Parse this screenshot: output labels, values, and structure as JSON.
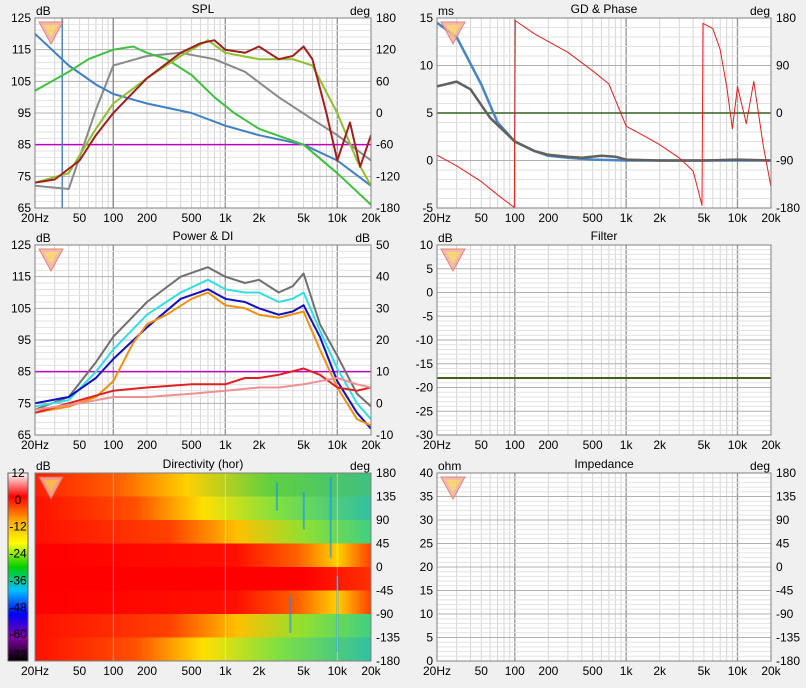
{
  "x_ticks": [
    "20Hz",
    "50",
    "100",
    "200",
    "500",
    "1k",
    "2k",
    "5k",
    "10k",
    "20k"
  ],
  "x_tick_values": [
    20,
    50,
    100,
    200,
    500,
    1000,
    2000,
    5000,
    10000,
    20000
  ],
  "directivity_colorbar": {
    "labels": [
      "12",
      "0",
      "-12",
      "-24",
      "-36",
      "-48",
      "-60",
      "-72"
    ],
    "colors": [
      "#ffffff",
      "#ff0000",
      "#ffa500",
      "#ffff00",
      "#00d000",
      "#00c0ff",
      "#0000ff",
      "#8000a0",
      "#000000"
    ]
  },
  "chart_data": [
    {
      "id": "spl",
      "type": "line",
      "title": "SPL",
      "left_unit": "dB",
      "right_unit": "deg",
      "xscale": "log",
      "xlim": [
        20,
        20000
      ],
      "ylim": [
        65,
        125
      ],
      "y_ticks": [
        "125",
        "115",
        "105",
        "95",
        "85",
        "75",
        "65"
      ],
      "y2lim": [
        -180,
        180
      ],
      "y2_ticks": [
        "180",
        "120",
        "60",
        "0",
        "-60",
        "-120",
        "-180"
      ],
      "grid": true,
      "series": [
        {
          "color": "#8a8a8a",
          "x": [
            20,
            40,
            70,
            100,
            200,
            400,
            800,
            1500,
            3000,
            6000,
            10000,
            20000
          ],
          "y": [
            72,
            71,
            96,
            110,
            113,
            114,
            112,
            108,
            100,
            93,
            88,
            80
          ]
        },
        {
          "color": "#4080c0",
          "x": [
            20,
            40,
            70,
            100,
            200,
            500,
            1000,
            2000,
            5000,
            10000,
            20000
          ],
          "y": [
            120,
            110,
            104,
            101,
            98,
            95,
            91,
            88,
            85,
            80,
            72
          ]
        },
        {
          "color": "#40c040",
          "x": [
            20,
            40,
            60,
            100,
            150,
            200,
            300,
            500,
            800,
            1200,
            2000,
            5000,
            10000,
            20000
          ],
          "y": [
            102,
            108,
            112,
            115,
            116,
            114,
            112,
            107,
            100,
            95,
            90,
            85,
            76,
            66
          ]
        },
        {
          "color": "#90c030",
          "x": [
            20,
            40,
            70,
            100,
            200,
            400,
            700,
            1000,
            2000,
            4000,
            6000,
            10000,
            15000,
            20000
          ],
          "y": [
            73,
            76,
            90,
            98,
            106,
            113,
            118,
            114,
            112,
            112,
            110,
            95,
            80,
            72
          ]
        },
        {
          "color": "#a02020",
          "x": [
            20,
            30,
            50,
            70,
            100,
            200,
            400,
            600,
            800,
            1000,
            1500,
            2000,
            3000,
            4000,
            5000,
            6000,
            8000,
            10000,
            13000,
            16000,
            20000
          ],
          "y": [
            73,
            74,
            80,
            88,
            95,
            106,
            114,
            117,
            118,
            115,
            114,
            116,
            112,
            113,
            116,
            112,
            95,
            80,
            92,
            78,
            88
          ]
        }
      ],
      "markers": {
        "hline": {
          "y": 85,
          "color": "#c000c0"
        },
        "vline_x": [
          35,
          100
        ]
      }
    },
    {
      "id": "gd_phase",
      "type": "line",
      "title": "GD & Phase",
      "left_unit": "ms",
      "right_unit": "deg",
      "xscale": "log",
      "xlim": [
        20,
        20000
      ],
      "ylim": [
        -5,
        15
      ],
      "y_ticks": [
        "15",
        "10",
        "5",
        "0",
        "-5"
      ],
      "y2lim": [
        -180,
        180
      ],
      "y2_ticks": [
        "180",
        "90",
        "0",
        "-90",
        "-180"
      ],
      "grid": true,
      "series": [
        {
          "name": "group-delay-blue",
          "color": "#4a86c0",
          "x": [
            20,
            30,
            50,
            70,
            100,
            150,
            200,
            300,
            500,
            1000,
            2000,
            5000,
            10000,
            20000
          ],
          "y": [
            14.5,
            13,
            8,
            4,
            2,
            1,
            0.5,
            0.3,
            0.1,
            0,
            0,
            0,
            0,
            0
          ]
        },
        {
          "name": "group-delay-gray",
          "color": "#606060",
          "x": [
            20,
            30,
            40,
            60,
            100,
            150,
            200,
            300,
            400,
            600,
            800,
            1000,
            2000,
            5000,
            10000,
            20000
          ],
          "y": [
            7.8,
            8.3,
            7.5,
            4.5,
            2,
            1,
            0.6,
            0.4,
            0.3,
            0.5,
            0.4,
            0.1,
            0,
            0,
            0.1,
            0
          ]
        },
        {
          "name": "phase",
          "color": "#e02020",
          "x": [
            20,
            30,
            50,
            70,
            99,
            101,
            150,
            300,
            500,
            700,
            1000,
            1500,
            2000,
            3000,
            4000,
            4800,
            4900,
            6000,
            7000,
            8000,
            9000,
            10000,
            12000,
            14000,
            17000,
            20000
          ],
          "y": [
            -80,
            -100,
            -130,
            -155,
            -179,
            175,
            150,
            115,
            80,
            55,
            -25,
            -45,
            -60,
            -85,
            -110,
            -175,
            170,
            160,
            120,
            50,
            -30,
            50,
            -20,
            60,
            -60,
            -140
          ]
        }
      ],
      "markers": {
        "hline": {
          "y": 5,
          "color": "#306020"
        }
      }
    },
    {
      "id": "power_di",
      "type": "line",
      "title": "Power & DI",
      "left_unit": "dB",
      "right_unit": "dB",
      "xscale": "log",
      "xlim": [
        20,
        20000
      ],
      "ylim": [
        65,
        125
      ],
      "y_ticks": [
        "125",
        "115",
        "105",
        "95",
        "85",
        "75",
        "65"
      ],
      "y2lim": [
        -10,
        50
      ],
      "y2_ticks": [
        "50",
        "40",
        "30",
        "20",
        "10",
        "0",
        "-10"
      ],
      "grid": true,
      "series": [
        {
          "color": "#707070",
          "x": [
            20,
            40,
            70,
            100,
            200,
            400,
            700,
            1000,
            1500,
            2000,
            3000,
            4000,
            5000,
            7000,
            10000,
            15000,
            20000
          ],
          "y": [
            73,
            77,
            88,
            96,
            107,
            115,
            118,
            115,
            113,
            114,
            110,
            112,
            116,
            100,
            90,
            78,
            74
          ]
        },
        {
          "color": "#30e0e0",
          "x": [
            20,
            40,
            70,
            100,
            200,
            400,
            700,
            1000,
            1500,
            2000,
            3000,
            4000,
            5000,
            7000,
            10000,
            15000,
            20000
          ],
          "y": [
            74,
            76,
            85,
            92,
            103,
            110,
            114,
            111,
            110,
            110,
            107,
            108,
            110,
            98,
            86,
            75,
            70
          ]
        },
        {
          "color": "#1010c0",
          "x": [
            20,
            40,
            70,
            100,
            200,
            400,
            700,
            1000,
            1500,
            2000,
            3000,
            4000,
            5000,
            7000,
            10000,
            15000,
            20000
          ],
          "y": [
            75,
            77,
            83,
            89,
            99,
            108,
            111,
            108,
            107,
            105,
            103,
            104,
            106,
            96,
            82,
            72,
            67
          ]
        },
        {
          "color": "#f09010",
          "x": [
            20,
            40,
            70,
            100,
            150,
            200,
            300,
            500,
            700,
            1000,
            1500,
            2000,
            3000,
            5000,
            7000,
            10000,
            15000,
            20000
          ],
          "y": [
            72,
            74,
            77,
            82,
            94,
            100,
            103,
            108,
            110,
            106,
            105,
            103,
            102,
            104,
            92,
            80,
            70,
            68
          ]
        },
        {
          "color": "#e02020",
          "x": [
            20,
            50,
            100,
            200,
            500,
            1000,
            1500,
            2000,
            3000,
            5000,
            7000,
            10000,
            15000,
            20000
          ],
          "y": [
            72,
            76,
            79,
            80,
            81,
            81,
            83,
            83,
            84,
            86,
            84,
            80,
            79,
            80
          ]
        },
        {
          "color": "#f09090",
          "x": [
            20,
            50,
            100,
            200,
            500,
            1000,
            2000,
            3000,
            5000,
            7000,
            10000,
            15000,
            20000
          ],
          "y": [
            73,
            75,
            77,
            77,
            78,
            79,
            80,
            80,
            81,
            82,
            83,
            81,
            80
          ]
        }
      ],
      "markers": {
        "hline": {
          "y": 85,
          "color": "#c000c0"
        }
      }
    },
    {
      "id": "filter",
      "type": "line",
      "title": "Filter",
      "left_unit": "dB",
      "right_unit": "",
      "xscale": "log",
      "xlim": [
        20,
        20000
      ],
      "ylim": [
        -30,
        10
      ],
      "y_ticks": [
        "10",
        "5",
        "0",
        "-5",
        "-10",
        "-15",
        "-20",
        "-25",
        "-30"
      ],
      "grid": true,
      "series": [
        {
          "color": "#406010",
          "x": [
            20,
            20000
          ],
          "y": [
            -18,
            -18
          ]
        }
      ]
    },
    {
      "id": "directivity",
      "type": "heatmap",
      "title": "Directivity (hor)",
      "left_unit": "dB",
      "right_unit": "deg",
      "xscale": "log",
      "xlim": [
        20,
        20000
      ],
      "y2lim": [
        -180,
        180
      ],
      "y2_ticks": [
        "180",
        "135",
        "90",
        "45",
        "0",
        "-45",
        "-90",
        "-135",
        "-180"
      ],
      "zlim": [
        -72,
        12
      ]
    },
    {
      "id": "impedance",
      "type": "line",
      "title": "Impedance",
      "left_unit": "ohm",
      "right_unit": "deg",
      "xscale": "log",
      "xlim": [
        20,
        20000
      ],
      "ylim": [
        0,
        40
      ],
      "y_ticks": [
        "40",
        "35",
        "30",
        "25",
        "20",
        "15",
        "10",
        "5",
        "0"
      ],
      "y2lim": [
        -180,
        180
      ],
      "y2_ticks": [
        "180",
        "135",
        "90",
        "45",
        "0",
        "-45",
        "-90",
        "-135",
        "-180"
      ],
      "grid": true,
      "series": []
    }
  ]
}
